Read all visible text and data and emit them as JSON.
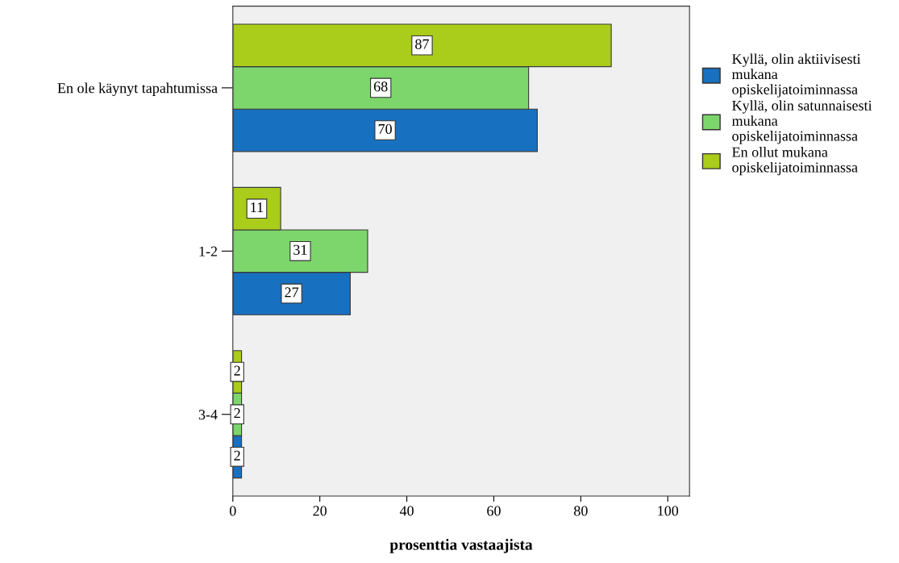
{
  "chart_data": {
    "type": "bar",
    "orientation": "horizontal",
    "xlabel": "prosenttia vastaajista",
    "categories": [
      "En ole käynyt tapahtumissa",
      "1-2",
      "3-4"
    ],
    "series": [
      {
        "name": "Kyllä, olin aktiivisesti\nmukana\nopiskelijatoiminnassa",
        "color": "#1870c0",
        "values": [
          70,
          27,
          2
        ]
      },
      {
        "name": "Kyllä, olin satunnaisesti\nmukana\nopiskelijatoiminnassa",
        "color": "#7dd66c",
        "values": [
          68,
          31,
          2
        ]
      },
      {
        "name": "En ollut mukana\nopiskelijatoiminnassa",
        "color": "#aacc1a",
        "values": [
          87,
          11,
          2
        ]
      }
    ],
    "xlim": [
      0,
      105
    ],
    "xticks": [
      0,
      20,
      40,
      60,
      80,
      100
    ],
    "data_labels": true,
    "grid": false,
    "legend": "right"
  }
}
